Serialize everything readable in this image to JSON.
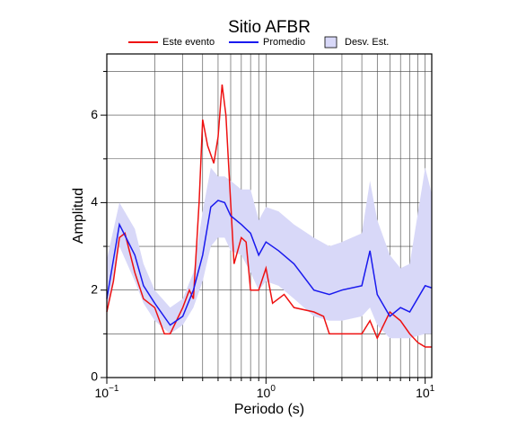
{
  "chart_data": {
    "type": "line",
    "title": "Sitio AFBR",
    "xlabel": "Periodo (s)",
    "ylabel": "Amplitud",
    "xscale": "log",
    "xlim": [
      0.1,
      11
    ],
    "ylim": [
      0,
      7.4
    ],
    "xticks": [
      {
        "value": 0.1,
        "label": "10",
        "exponent": "−1"
      },
      {
        "value": 1,
        "label": "10",
        "exponent": "0"
      },
      {
        "value": 10,
        "label": "10",
        "exponent": "1"
      }
    ],
    "xminor": [
      0.2,
      0.3,
      0.4,
      0.5,
      0.6,
      0.7,
      0.8,
      0.9,
      2,
      3,
      4,
      5,
      6,
      7,
      8,
      9
    ],
    "yticks": [
      0,
      2,
      4,
      6
    ],
    "yminor": [
      1,
      3,
      5,
      7
    ],
    "grid": true,
    "series": [
      {
        "name": "Este evento",
        "color": "#ee1111",
        "x": [
          0.1,
          0.11,
          0.12,
          0.13,
          0.15,
          0.17,
          0.2,
          0.23,
          0.25,
          0.3,
          0.33,
          0.35,
          0.38,
          0.4,
          0.43,
          0.47,
          0.5,
          0.53,
          0.56,
          0.6,
          0.63,
          0.7,
          0.75,
          0.8,
          0.9,
          1.0,
          1.1,
          1.3,
          1.5,
          2,
          2.3,
          2.5,
          3,
          4,
          4.5,
          5,
          6,
          7,
          8,
          9,
          10,
          11
        ],
        "values": [
          1.5,
          2.2,
          3.2,
          3.3,
          2.4,
          1.8,
          1.6,
          1.0,
          1.0,
          1.6,
          2.0,
          1.8,
          4.0,
          5.9,
          5.3,
          4.9,
          5.5,
          6.7,
          6.0,
          4.0,
          2.6,
          3.2,
          3.1,
          2.0,
          2.0,
          2.5,
          1.7,
          1.9,
          1.6,
          1.5,
          1.4,
          1.0,
          1.0,
          1.0,
          1.3,
          0.9,
          1.5,
          1.3,
          1.0,
          0.8,
          0.7,
          0.7
        ]
      },
      {
        "name": "Promedio",
        "color": "#1a1aee",
        "x": [
          0.1,
          0.12,
          0.15,
          0.17,
          0.2,
          0.25,
          0.3,
          0.35,
          0.4,
          0.45,
          0.5,
          0.55,
          0.6,
          0.7,
          0.8,
          0.9,
          1.0,
          1.2,
          1.5,
          2,
          2.5,
          3,
          4,
          4.5,
          5,
          6,
          7,
          8,
          10,
          11
        ],
        "values": [
          1.8,
          3.5,
          2.8,
          2.1,
          1.7,
          1.2,
          1.4,
          2.0,
          2.8,
          3.9,
          4.05,
          4.0,
          3.7,
          3.5,
          3.3,
          2.8,
          3.1,
          2.9,
          2.6,
          2.0,
          1.9,
          2.0,
          2.1,
          2.9,
          1.9,
          1.4,
          1.6,
          1.5,
          2.1,
          2.05
        ]
      },
      {
        "name": "Desv. Est.",
        "color": "#d8d8f8",
        "x": [
          0.1,
          0.12,
          0.15,
          0.17,
          0.2,
          0.25,
          0.3,
          0.35,
          0.4,
          0.45,
          0.5,
          0.55,
          0.6,
          0.7,
          0.8,
          0.9,
          1.0,
          1.2,
          1.5,
          2,
          2.5,
          3,
          4,
          4.5,
          5,
          6,
          7,
          8,
          10,
          11
        ],
        "lower": [
          1.5,
          3.0,
          2.2,
          1.7,
          1.3,
          1.0,
          1.2,
          1.6,
          2.2,
          3.0,
          3.2,
          3.2,
          2.9,
          2.8,
          2.4,
          2.0,
          2.2,
          2.1,
          1.8,
          1.4,
          1.3,
          1.3,
          1.4,
          1.6,
          1.2,
          0.9,
          0.9,
          0.9,
          1.0,
          1.0
        ],
        "upper": [
          2.7,
          4.0,
          3.4,
          2.6,
          2.0,
          1.6,
          1.8,
          2.4,
          3.8,
          4.8,
          4.6,
          4.6,
          4.5,
          4.3,
          4.3,
          3.6,
          3.9,
          3.8,
          3.5,
          3.2,
          3.0,
          3.1,
          3.3,
          4.5,
          3.6,
          2.8,
          2.5,
          2.6,
          4.8,
          4.2
        ]
      }
    ]
  }
}
